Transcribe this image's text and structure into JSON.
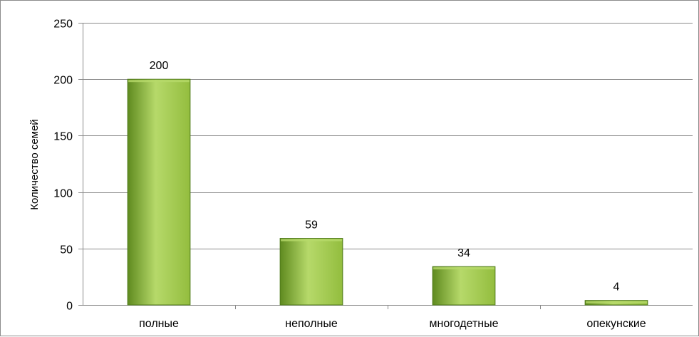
{
  "chart_data": {
    "type": "bar",
    "title": "",
    "xlabel": "",
    "ylabel": "Количество семей",
    "categories": [
      "полные",
      "неполные",
      "многодетные",
      "опекунские"
    ],
    "values": [
      200,
      59,
      34,
      4
    ],
    "data_labels": [
      "200",
      "59",
      "34",
      "4"
    ],
    "ylim": [
      0,
      250
    ],
    "yticks": [
      0,
      50,
      100,
      150,
      200,
      250
    ],
    "grid": true,
    "legend": "none",
    "colors": {
      "bar_light": "#b6d96a",
      "bar_mid": "#93bd3e",
      "bar_dark": "#5f8a1f",
      "bar_edge": "#4f7a1a",
      "gridline": "#8a8a8a",
      "axis": "#8a8a8a"
    }
  }
}
